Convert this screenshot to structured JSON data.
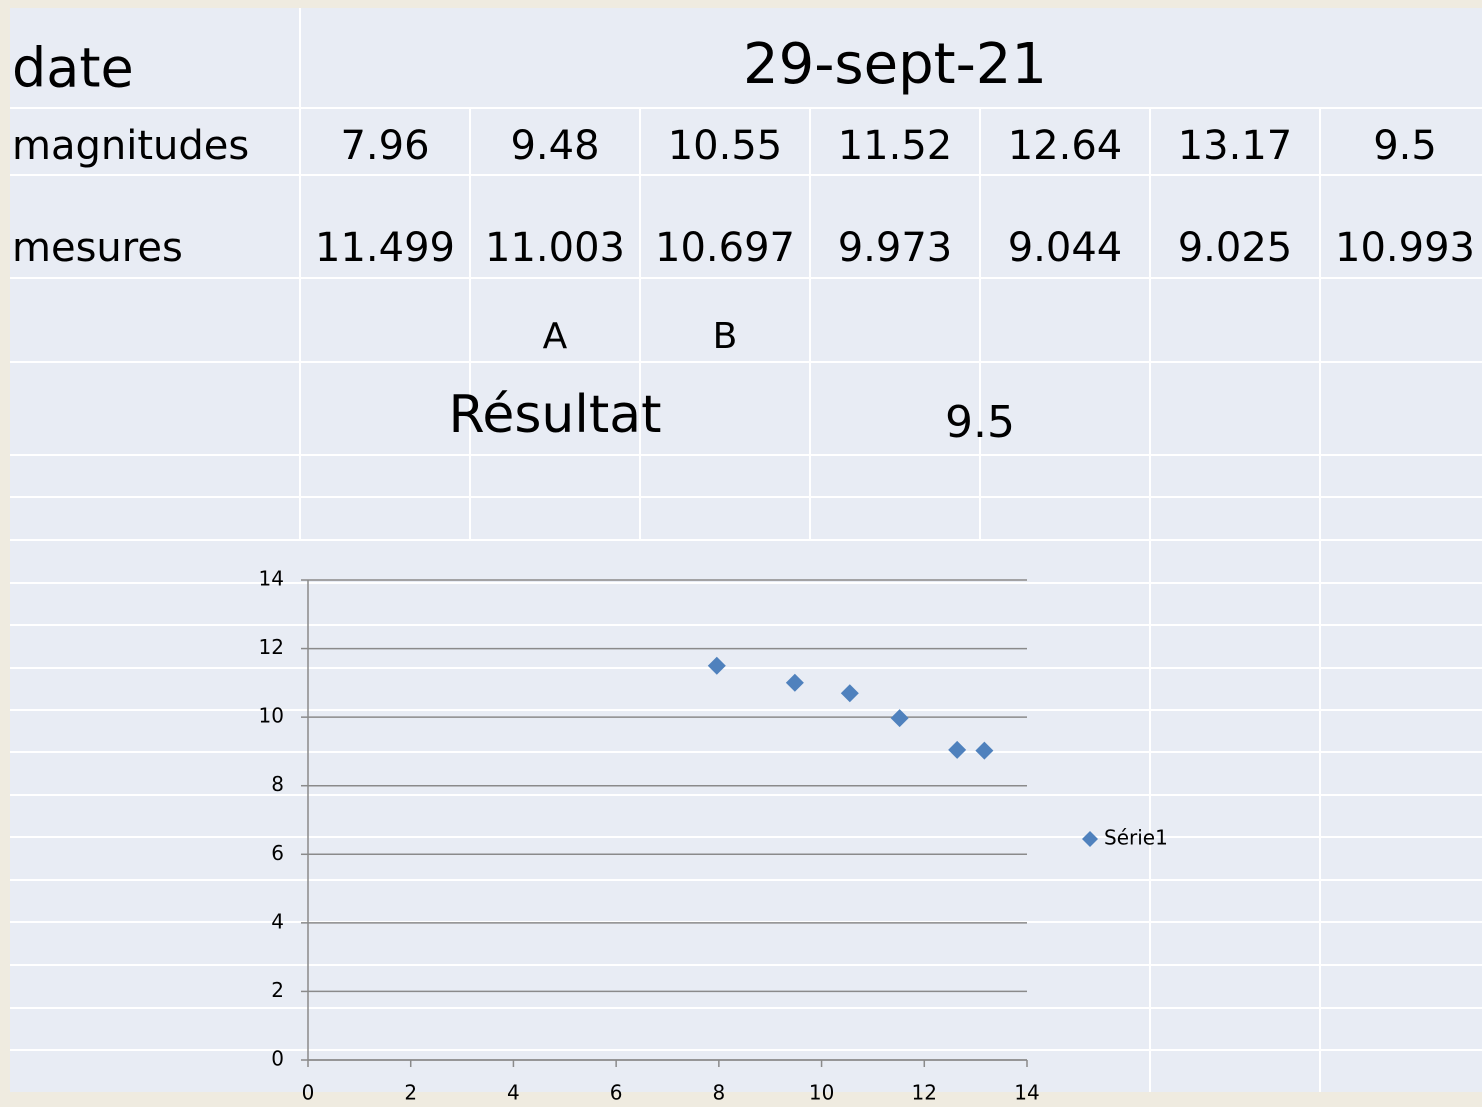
{
  "table": {
    "date_label": "date",
    "date": "29-sept-21",
    "rows": [
      {
        "label": "magnitudes",
        "values": [
          7.96,
          9.48,
          10.55,
          11.52,
          12.64,
          13.17,
          9.5
        ]
      },
      {
        "label": "mesures",
        "values": [
          11.499,
          11.003,
          10.697,
          9.973,
          9.044,
          9.025,
          10.993
        ]
      }
    ],
    "markers": [
      "A",
      "B"
    ],
    "result_label": "Résultat",
    "result": 9.5
  },
  "chart_data": {
    "type": "scatter",
    "series": [
      {
        "name": "Série1",
        "color": "#4f81bd",
        "x": [
          7.96,
          9.48,
          10.55,
          11.52,
          12.64,
          13.17
        ],
        "values": [
          11.499,
          11.003,
          10.697,
          9.973,
          9.044,
          9.025
        ]
      }
    ],
    "xlim": [
      0,
      14
    ],
    "ylim": [
      0,
      14
    ],
    "xticks": [
      0,
      2,
      4,
      6,
      8,
      10,
      12,
      14
    ],
    "yticks": [
      0,
      2,
      4,
      6,
      8,
      10,
      12,
      14
    ],
    "grid": true,
    "legend": "right"
  }
}
